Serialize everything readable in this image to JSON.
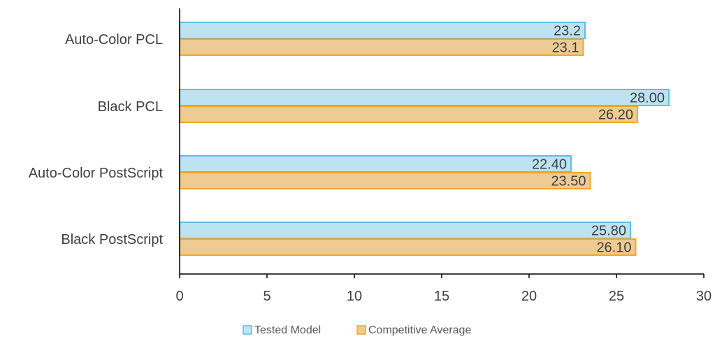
{
  "chart_data": {
    "type": "bar",
    "orientation": "horizontal",
    "categories": [
      "Auto-Color PCL",
      "Black PCL",
      "Auto-Color PostScript",
      "Black PostScript"
    ],
    "series": [
      {
        "name": "Tested Model",
        "values": [
          23.2,
          28.0,
          22.4,
          25.8
        ],
        "labels": [
          "23.2",
          "28.00",
          "22.40",
          "25.80"
        ],
        "fill": "#BDE3F2",
        "stroke": "#5BC0E8"
      },
      {
        "name": "Competitive Average",
        "values": [
          23.1,
          26.2,
          23.5,
          26.1
        ],
        "labels": [
          "23.1",
          "26.20",
          "23.50",
          "26.10"
        ],
        "fill": "#EECB93",
        "stroke": "#F5A623"
      }
    ],
    "x_ticks": [
      "0",
      "5",
      "10",
      "15",
      "20",
      "25",
      "30"
    ],
    "xlim": [
      0,
      30
    ],
    "title": "",
    "xlabel": "",
    "ylabel": "",
    "grid": false,
    "legend_position": "bottom"
  }
}
